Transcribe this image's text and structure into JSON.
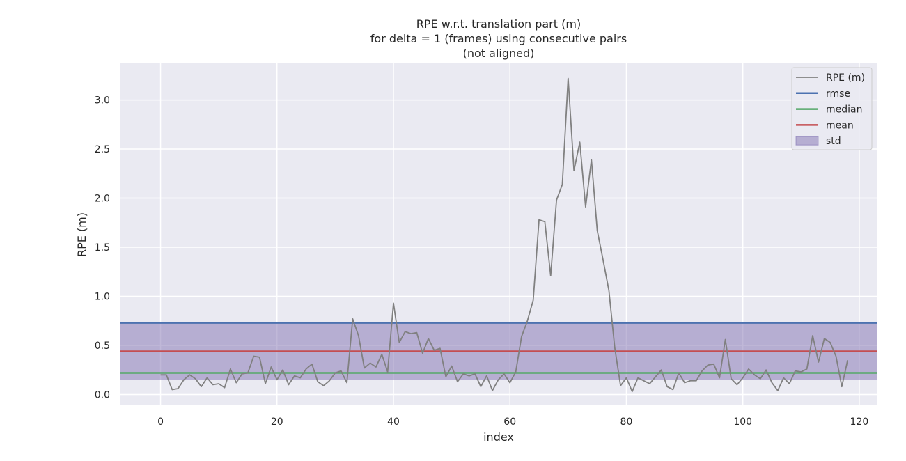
{
  "chart_data": {
    "type": "line",
    "title_lines": [
      "RPE w.r.t. translation part (m)",
      "for delta = 1 (frames) using consecutive pairs",
      "(not aligned)"
    ],
    "xlabel": "index",
    "ylabel": "RPE (m)",
    "xlim": [
      -7,
      123
    ],
    "ylim": [
      -0.11,
      3.38
    ],
    "xticks": [
      0,
      20,
      40,
      60,
      80,
      100,
      120
    ],
    "yticks": [
      0.0,
      0.5,
      1.0,
      1.5,
      2.0,
      2.5,
      3.0
    ],
    "ytick_labels": [
      "0.0",
      "0.5",
      "1.0",
      "1.5",
      "2.0",
      "2.5",
      "3.0"
    ],
    "grid": true,
    "legend_position": "top-right",
    "series": [
      {
        "name": "RPE (m)",
        "color": "#808080",
        "values": [
          0.2,
          0.2,
          0.05,
          0.06,
          0.15,
          0.2,
          0.16,
          0.08,
          0.17,
          0.1,
          0.11,
          0.07,
          0.26,
          0.12,
          0.21,
          0.22,
          0.39,
          0.38,
          0.11,
          0.28,
          0.15,
          0.25,
          0.1,
          0.19,
          0.17,
          0.26,
          0.31,
          0.13,
          0.09,
          0.14,
          0.22,
          0.24,
          0.12,
          0.77,
          0.6,
          0.27,
          0.32,
          0.28,
          0.41,
          0.23,
          0.93,
          0.53,
          0.64,
          0.62,
          0.63,
          0.42,
          0.57,
          0.45,
          0.47,
          0.18,
          0.29,
          0.13,
          0.21,
          0.19,
          0.21,
          0.08,
          0.19,
          0.04,
          0.15,
          0.21,
          0.12,
          0.23,
          0.59,
          0.75,
          0.96,
          1.78,
          1.76,
          1.21,
          1.98,
          2.14,
          3.22,
          2.28,
          2.57,
          1.91,
          2.39,
          1.67,
          1.37,
          1.06,
          0.48,
          0.09,
          0.17,
          0.03,
          0.17,
          0.14,
          0.11,
          0.18,
          0.25,
          0.08,
          0.05,
          0.22,
          0.12,
          0.14,
          0.14,
          0.24,
          0.3,
          0.31,
          0.17,
          0.56,
          0.16,
          0.1,
          0.17,
          0.26,
          0.2,
          0.16,
          0.25,
          0.12,
          0.04,
          0.17,
          0.11,
          0.24,
          0.23,
          0.26,
          0.6,
          0.33,
          0.57,
          0.53,
          0.39,
          0.08,
          0.35
        ]
      }
    ],
    "stats": {
      "rmse": {
        "name": "rmse",
        "value": 0.73,
        "color": "#4c72b0"
      },
      "median": {
        "name": "median",
        "value": 0.22,
        "color": "#55a868"
      },
      "mean": {
        "name": "mean",
        "value": 0.44,
        "color": "#c44e52"
      },
      "std": {
        "name": "std",
        "lower": 0.15,
        "upper": 0.73,
        "color": "#8172b2"
      }
    },
    "legend": [
      "RPE (m)",
      "rmse",
      "median",
      "mean",
      "std"
    ]
  }
}
